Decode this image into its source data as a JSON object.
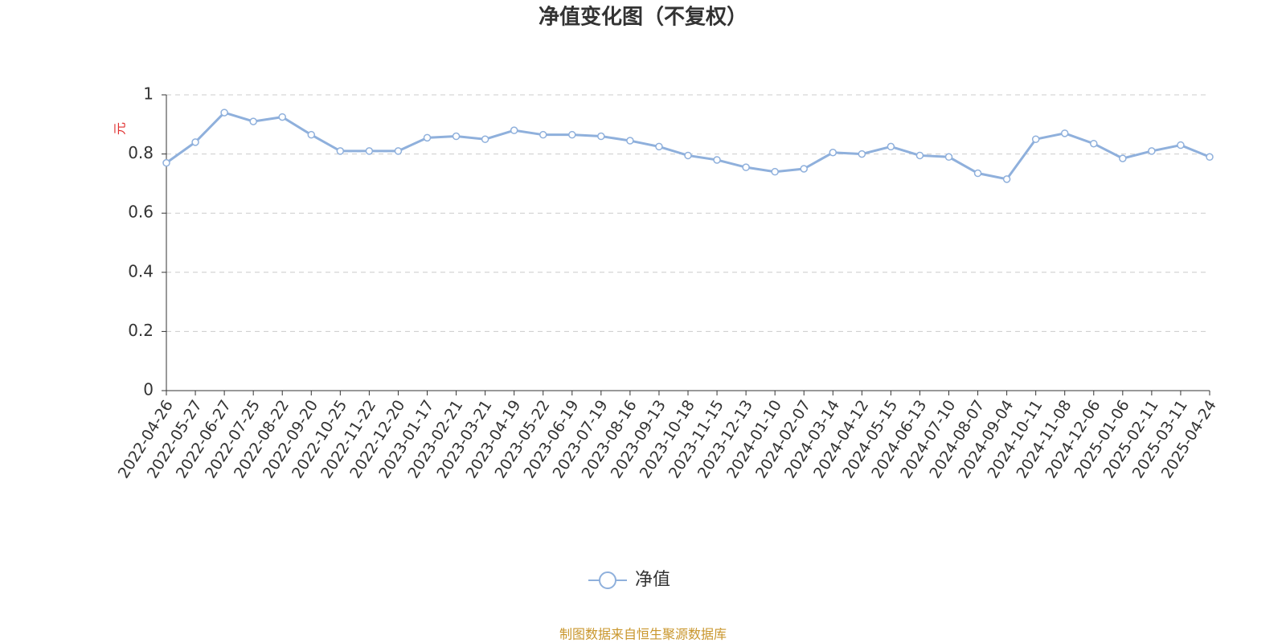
{
  "chart_data": {
    "type": "line",
    "title": "净值变化图（不复权）",
    "y_label": "元",
    "source": "制图数据来自恒生聚源数据库",
    "categories": [
      "2022-04-26",
      "2022-05-27",
      "2022-06-27",
      "2022-07-25",
      "2022-08-22",
      "2022-09-20",
      "2022-10-25",
      "2022-11-22",
      "2022-12-20",
      "2023-01-17",
      "2023-02-21",
      "2023-03-21",
      "2023-04-19",
      "2023-05-22",
      "2023-06-19",
      "2023-07-19",
      "2023-08-16",
      "2023-09-13",
      "2023-10-18",
      "2023-11-15",
      "2023-12-13",
      "2024-01-10",
      "2024-02-07",
      "2024-03-14",
      "2024-04-12",
      "2024-05-15",
      "2024-06-13",
      "2024-07-10",
      "2024-08-07",
      "2024-09-04",
      "2024-10-11",
      "2024-11-08",
      "2024-12-06",
      "2025-01-06",
      "2025-02-11",
      "2025-03-11",
      "2025-04-24"
    ],
    "series": [
      {
        "name": "净值",
        "color": "#8fb0dc",
        "values": [
          0.77,
          0.84,
          0.94,
          0.91,
          0.925,
          0.865,
          0.81,
          0.81,
          0.81,
          0.855,
          0.86,
          0.85,
          0.88,
          0.865,
          0.865,
          0.86,
          0.845,
          0.825,
          0.795,
          0.78,
          0.755,
          0.74,
          0.75,
          0.805,
          0.8,
          0.825,
          0.795,
          0.79,
          0.735,
          0.715,
          0.85,
          0.87,
          0.835,
          0.785,
          0.81,
          0.83,
          0.79
        ]
      }
    ],
    "ylim": [
      0,
      1
    ],
    "yticks": [
      0,
      0.2,
      0.4,
      0.6,
      0.8,
      1
    ],
    "grid": true,
    "legend": "bottom"
  }
}
